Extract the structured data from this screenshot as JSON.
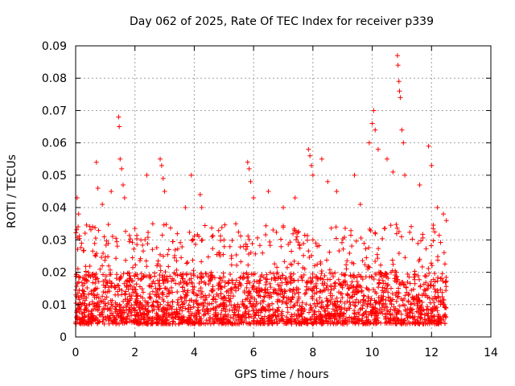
{
  "chart_data": {
    "type": "scatter",
    "title": "Day 062 of 2025, Rate Of TEC Index for receiver p339",
    "xlabel": "GPS time / hours",
    "ylabel": "ROTI / TECUs",
    "xlim": [
      0,
      14
    ],
    "ylim": [
      0,
      0.09
    ],
    "x_ticks": [
      0,
      2,
      4,
      6,
      8,
      10,
      12,
      14
    ],
    "x_tick_labels": [
      "0",
      "2",
      "4",
      "6",
      "8",
      "10",
      "12",
      "14"
    ],
    "y_ticks": [
      0,
      0.01,
      0.02,
      0.03,
      0.04,
      0.05,
      0.06,
      0.07,
      0.08,
      0.09
    ],
    "y_tick_labels": [
      "0",
      "0.01",
      "0.02",
      "0.03",
      "0.04",
      "0.05",
      "0.06",
      "0.07",
      "0.08",
      "0.09"
    ],
    "grid": true,
    "marker": "+",
    "color": "#ff0000",
    "data_coverage_hours": [
      0,
      12.5
    ],
    "series": [
      {
        "name": "ROTI",
        "points": [
          [
            0.05,
            0.043
          ],
          [
            0.1,
            0.038
          ],
          [
            0.2,
            0.029
          ],
          [
            0.7,
            0.054
          ],
          [
            0.75,
            0.046
          ],
          [
            0.9,
            0.041
          ],
          [
            1.2,
            0.045
          ],
          [
            1.45,
            0.068
          ],
          [
            1.47,
            0.065
          ],
          [
            1.5,
            0.055
          ],
          [
            1.55,
            0.052
          ],
          [
            1.6,
            0.047
          ],
          [
            1.65,
            0.043
          ],
          [
            2.2,
            0.03
          ],
          [
            2.4,
            0.05
          ],
          [
            2.6,
            0.035
          ],
          [
            2.85,
            0.055
          ],
          [
            2.9,
            0.053
          ],
          [
            2.95,
            0.049
          ],
          [
            3.0,
            0.045
          ],
          [
            3.7,
            0.04
          ],
          [
            3.9,
            0.05
          ],
          [
            4.2,
            0.044
          ],
          [
            4.25,
            0.04
          ],
          [
            4.6,
            0.031
          ],
          [
            5.0,
            0.03
          ],
          [
            5.4,
            0.035
          ],
          [
            5.8,
            0.054
          ],
          [
            5.85,
            0.052
          ],
          [
            5.9,
            0.048
          ],
          [
            6.0,
            0.043
          ],
          [
            6.5,
            0.045
          ],
          [
            7.0,
            0.04
          ],
          [
            7.4,
            0.043
          ],
          [
            7.85,
            0.058
          ],
          [
            7.9,
            0.056
          ],
          [
            7.95,
            0.053
          ],
          [
            8.0,
            0.05
          ],
          [
            8.3,
            0.055
          ],
          [
            8.5,
            0.048
          ],
          [
            8.8,
            0.045
          ],
          [
            9.4,
            0.05
          ],
          [
            9.6,
            0.041
          ],
          [
            9.9,
            0.06
          ],
          [
            10.0,
            0.066
          ],
          [
            10.05,
            0.07
          ],
          [
            10.1,
            0.064
          ],
          [
            10.2,
            0.058
          ],
          [
            10.5,
            0.055
          ],
          [
            10.7,
            0.051
          ],
          [
            10.85,
            0.087
          ],
          [
            10.87,
            0.084
          ],
          [
            10.9,
            0.079
          ],
          [
            10.92,
            0.076
          ],
          [
            10.95,
            0.074
          ],
          [
            11.0,
            0.064
          ],
          [
            11.05,
            0.06
          ],
          [
            11.1,
            0.05
          ],
          [
            11.6,
            0.047
          ],
          [
            11.9,
            0.059
          ],
          [
            12.0,
            0.053
          ],
          [
            12.2,
            0.04
          ],
          [
            12.4,
            0.038
          ],
          [
            12.5,
            0.036
          ]
        ],
        "baseline_band": {
          "min": 0.004,
          "max": 0.02,
          "typical_peaks": [
            0.025,
            0.035
          ]
        }
      }
    ]
  }
}
